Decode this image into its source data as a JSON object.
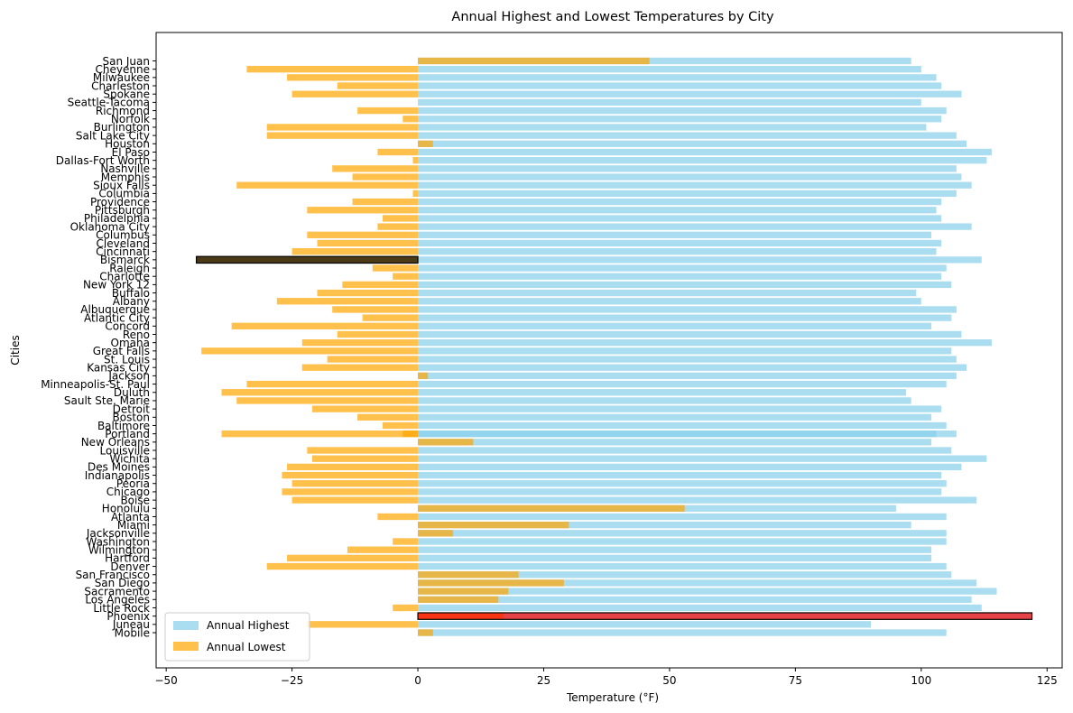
{
  "chart_data": {
    "type": "bar",
    "orientation": "horizontal",
    "title": "Annual Highest and Lowest Temperatures by City",
    "xlabel": "Temperature (°F)",
    "ylabel": "Cities",
    "xlim": [
      -52,
      128
    ],
    "xticks": [
      -50,
      -25,
      0,
      25,
      50,
      75,
      100,
      125
    ],
    "grid": false,
    "legend_position": "lower-left",
    "categories": [
      "Mobile",
      "Juneau",
      "Phoenix",
      "Little Rock",
      "Los Angeles",
      "Sacramento",
      "San Diego",
      "San Francisco",
      "Denver",
      "Hartford",
      "Wilmington",
      "Washington",
      "Jacksonville",
      "Miami",
      "Atlanta",
      "Honolulu",
      "Boise",
      "Chicago",
      "Peoria",
      "Indianapolis",
      "Des Moines",
      "Wichita",
      "Louisville",
      "New Orleans",
      "Portland",
      "Baltimore",
      "Boston",
      "Detroit",
      "Sault Ste. Marie",
      "Duluth",
      "Minneapolis-St. Paul",
      "Jackson",
      "Kansas City",
      "St. Louis",
      "Great Falls",
      "Omaha",
      "Reno",
      "Concord",
      "Atlantic City",
      "Albuquerque",
      "Albany",
      "Buffalo",
      "New York 12",
      "Charlotte",
      "Raleigh",
      "Bismarck",
      "Cincinnati",
      "Cleveland",
      "Columbus",
      "Oklahoma City",
      "Philadelphia",
      "Pittsburgh",
      "Providence",
      "Columbia",
      "Sioux Falls",
      "Memphis",
      "Nashville",
      "Dallas-Fort Worth",
      "El Paso",
      "Houston",
      "Salt Lake City",
      "Burlington",
      "Norfolk",
      "Richmond",
      "Seattle-Tacoma",
      "Spokane",
      "Charleston",
      "Milwaukee",
      "Cheyenne",
      "San Juan"
    ],
    "series": [
      {
        "name": "Annual Highest",
        "color": "#87ceeb",
        "values": [
          105,
          90,
          122,
          112,
          110,
          115,
          111,
          106,
          105,
          102,
          102,
          105,
          105,
          98,
          105,
          95,
          111,
          104,
          105,
          104,
          108,
          113,
          106,
          102,
          107,
          105,
          102,
          104,
          98,
          97,
          105,
          107,
          109,
          107,
          106,
          114,
          108,
          102,
          106,
          107,
          100,
          99,
          106,
          104,
          105,
          112,
          103,
          104,
          102,
          110,
          104,
          103,
          104,
          107,
          110,
          108,
          107,
          113,
          114,
          109,
          107,
          101,
          104,
          105,
          100,
          108,
          104,
          103,
          100,
          98
        ]
      },
      {
        "name": "Annual Lowest",
        "color": "#ffa500",
        "values": [
          3,
          -22,
          17,
          -5,
          16,
          18,
          29,
          20,
          -30,
          -26,
          -14,
          -5,
          7,
          30,
          -8,
          53,
          -25,
          -27,
          -25,
          -27,
          -26,
          -21,
          -22,
          11,
          -39,
          -7,
          -12,
          -21,
          -36,
          -39,
          -34,
          2,
          -23,
          -18,
          -43,
          -23,
          -16,
          -37,
          -11,
          -17,
          -28,
          -20,
          -15,
          -5,
          -9,
          -44,
          -25,
          -20,
          -22,
          -8,
          -7,
          -22,
          -13,
          -1,
          -36,
          -13,
          -17,
          -1,
          -8,
          3,
          -30,
          -30,
          -3,
          -12,
          0,
          -25,
          -16,
          -26,
          -34,
          46
        ]
      }
    ],
    "highlights": [
      {
        "city": "Phoenix",
        "series": "Annual Highest",
        "value": 122,
        "color": "#ff0000"
      },
      {
        "city": "Bismarck",
        "series": "Annual Lowest",
        "value": -44,
        "color": "#000000"
      }
    ],
    "extra_bars": [
      {
        "city": "Portland",
        "series": "Annual Highest",
        "value": 103
      },
      {
        "city": "Portland",
        "series": "Annual Lowest",
        "value": -3
      }
    ]
  }
}
